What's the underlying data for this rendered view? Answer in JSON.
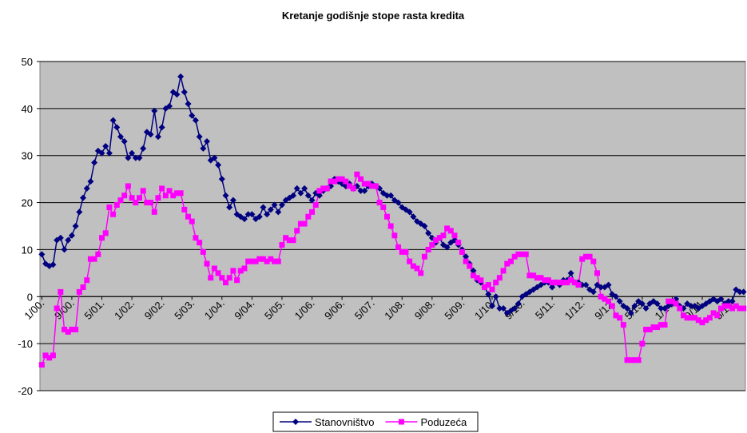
{
  "chart_data": {
    "type": "line",
    "title": "Kretanje godišnje stope rasta kredita",
    "categories": [
      "1/00.",
      null,
      null,
      null,
      null,
      null,
      null,
      null,
      "9/00.",
      null,
      null,
      null,
      null,
      null,
      null,
      null,
      "5/01.",
      null,
      null,
      null,
      null,
      null,
      null,
      null,
      "1/02.",
      null,
      null,
      null,
      null,
      null,
      null,
      null,
      "9/02.",
      null,
      null,
      null,
      null,
      null,
      null,
      null,
      "5/03.",
      null,
      null,
      null,
      null,
      null,
      null,
      null,
      "1/04.",
      null,
      null,
      null,
      null,
      null,
      null,
      null,
      "9/04.",
      null,
      null,
      null,
      null,
      null,
      null,
      null,
      "5/05.",
      null,
      null,
      null,
      null,
      null,
      null,
      null,
      "1/06.",
      null,
      null,
      null,
      null,
      null,
      null,
      null,
      "9/06.",
      null,
      null,
      null,
      null,
      null,
      null,
      null,
      "5/07.",
      null,
      null,
      null,
      null,
      null,
      null,
      null,
      "1/08.",
      null,
      null,
      null,
      null,
      null,
      null,
      null,
      "9/08.",
      null,
      null,
      null,
      null,
      null,
      null,
      null,
      "5/09.",
      null,
      null,
      null,
      null,
      null,
      null,
      null,
      "1/10.",
      null,
      null,
      null,
      null,
      null,
      null,
      null,
      "9/10.",
      null,
      null,
      null,
      null,
      null,
      null,
      null,
      "5/11.",
      null,
      null,
      null,
      null,
      null,
      null,
      null,
      "1/12.",
      null,
      null,
      null,
      null,
      null,
      null,
      null,
      "9/12.",
      null,
      null,
      null,
      null,
      null,
      null,
      null,
      "5/13.",
      null,
      null,
      null,
      null,
      null,
      null,
      null,
      "1/14.",
      null,
      null,
      null,
      null,
      null,
      null,
      null,
      "9/14.",
      null,
      null,
      null,
      null,
      null,
      null,
      null,
      "5/15.",
      null,
      null,
      null
    ],
    "series": [
      {
        "name": "Stanovništvo",
        "color": "#000080",
        "marker": "diamond",
        "values": [
          9,
          7,
          6.5,
          6.8,
          12,
          12.5,
          10,
          12,
          13,
          15,
          18,
          21,
          23,
          24.5,
          28.5,
          31,
          30.5,
          32,
          30.5,
          37.5,
          36,
          34,
          33,
          29.5,
          30.5,
          29.5,
          29.5,
          31.5,
          35,
          34.5,
          39.5,
          34,
          36,
          40,
          40.5,
          43.5,
          43,
          46.8,
          43.5,
          41,
          38.5,
          37.5,
          34,
          31.5,
          33,
          29,
          29.5,
          28,
          25,
          21.5,
          19,
          20.5,
          17.5,
          17,
          16.5,
          17.5,
          17.5,
          16.5,
          17,
          19,
          17.5,
          18.5,
          19.5,
          18,
          19.5,
          20.5,
          21,
          21.5,
          23,
          22,
          23,
          21.5,
          20.5,
          22,
          21.5,
          22.5,
          23,
          23.5,
          25,
          24.5,
          24,
          23.5,
          24,
          23,
          23.5,
          22.5,
          22.5,
          23.5,
          24,
          23.5,
          23,
          22,
          21.5,
          21.5,
          20.5,
          20,
          19,
          18.5,
          18,
          17,
          16,
          15.5,
          15,
          13.5,
          12.5,
          11.5,
          12.5,
          11,
          10.5,
          11.5,
          12,
          11,
          10,
          8.5,
          7,
          5.5,
          3.5,
          3,
          2,
          0.5,
          -2,
          0,
          -2.5,
          -2.5,
          -3.5,
          -3,
          -2.5,
          -1.5,
          0,
          0.5,
          1,
          1.5,
          2,
          2.5,
          3,
          3,
          2,
          3,
          2.5,
          3.5,
          3.5,
          5,
          3,
          3,
          2.5,
          2.5,
          1.5,
          1,
          2.5,
          2,
          2,
          2.5,
          0.5,
          0,
          -1,
          -2,
          -2.5,
          -3.5,
          -2,
          -1,
          -1.5,
          -2.5,
          -1.5,
          -1,
          -1.5,
          -2.5,
          -2.5,
          -2,
          -1.5,
          -0.5,
          -2,
          -2.5,
          -1.5,
          -2,
          -2,
          -2.5,
          -2,
          -1.5,
          -1,
          -0.5,
          -1,
          -0.5,
          -1.5,
          -1,
          -1,
          1.5,
          1,
          1
        ]
      },
      {
        "name": "Poduzeća",
        "color": "#ff00ff",
        "marker": "square",
        "values": [
          -14.5,
          -12.5,
          -13,
          -12.5,
          -2.5,
          1,
          -7,
          -7.5,
          -7,
          -7,
          1,
          2,
          3.5,
          8,
          8,
          9,
          12.5,
          13.5,
          19,
          17.5,
          19.5,
          20.5,
          21.5,
          23.5,
          21,
          20,
          21,
          22.5,
          20,
          20,
          18,
          21,
          23,
          21.5,
          22.5,
          21.5,
          22,
          22,
          18.5,
          17,
          16,
          12.5,
          11.5,
          9.5,
          7,
          4,
          6,
          5,
          4,
          3,
          4,
          5.5,
          3.5,
          5.5,
          6,
          7.5,
          7.5,
          7.5,
          8,
          8,
          7.5,
          8,
          7.5,
          7.5,
          11,
          12.5,
          12,
          12,
          14,
          15.5,
          15.5,
          17,
          18,
          19.5,
          22.5,
          23,
          23,
          24.5,
          24.5,
          25,
          25,
          24.5,
          23.5,
          23,
          26,
          25,
          24,
          24,
          23.5,
          23.5,
          20,
          19,
          17,
          15,
          13,
          10.5,
          9.5,
          9.5,
          7.5,
          6.5,
          6,
          5,
          8.5,
          10,
          11,
          12,
          12.5,
          13,
          14.5,
          14,
          13,
          11.5,
          9.5,
          7.5,
          6.5,
          4.5,
          4,
          3.5,
          2,
          2.5,
          1.5,
          3,
          4,
          5.5,
          7,
          7.5,
          8.5,
          9,
          9,
          9,
          4.5,
          4.5,
          4,
          4,
          3.5,
          3.5,
          3,
          3,
          3,
          3,
          3,
          3.5,
          3,
          2.5,
          8,
          8.5,
          8.5,
          7.5,
          5,
          0,
          -0.5,
          -1,
          -2,
          -4,
          -4.5,
          -6,
          -13.5,
          -13.5,
          -13.5,
          -13.5,
          -10,
          -7,
          -7,
          -6.5,
          -6.5,
          -6,
          -6,
          -1,
          -1,
          -1.5,
          -2.5,
          -4,
          -4.5,
          -4.5,
          -4.5,
          -5,
          -5.5,
          -5,
          -4.5,
          -3.5,
          -4,
          -2.5,
          -2,
          -2,
          -2.5,
          -2,
          -2.5,
          -2.5
        ]
      }
    ],
    "ylim": [
      -20,
      50
    ],
    "yticks": [
      -20,
      -10,
      0,
      10,
      20,
      30,
      40,
      50
    ],
    "grid": true,
    "legend": "bottom"
  }
}
